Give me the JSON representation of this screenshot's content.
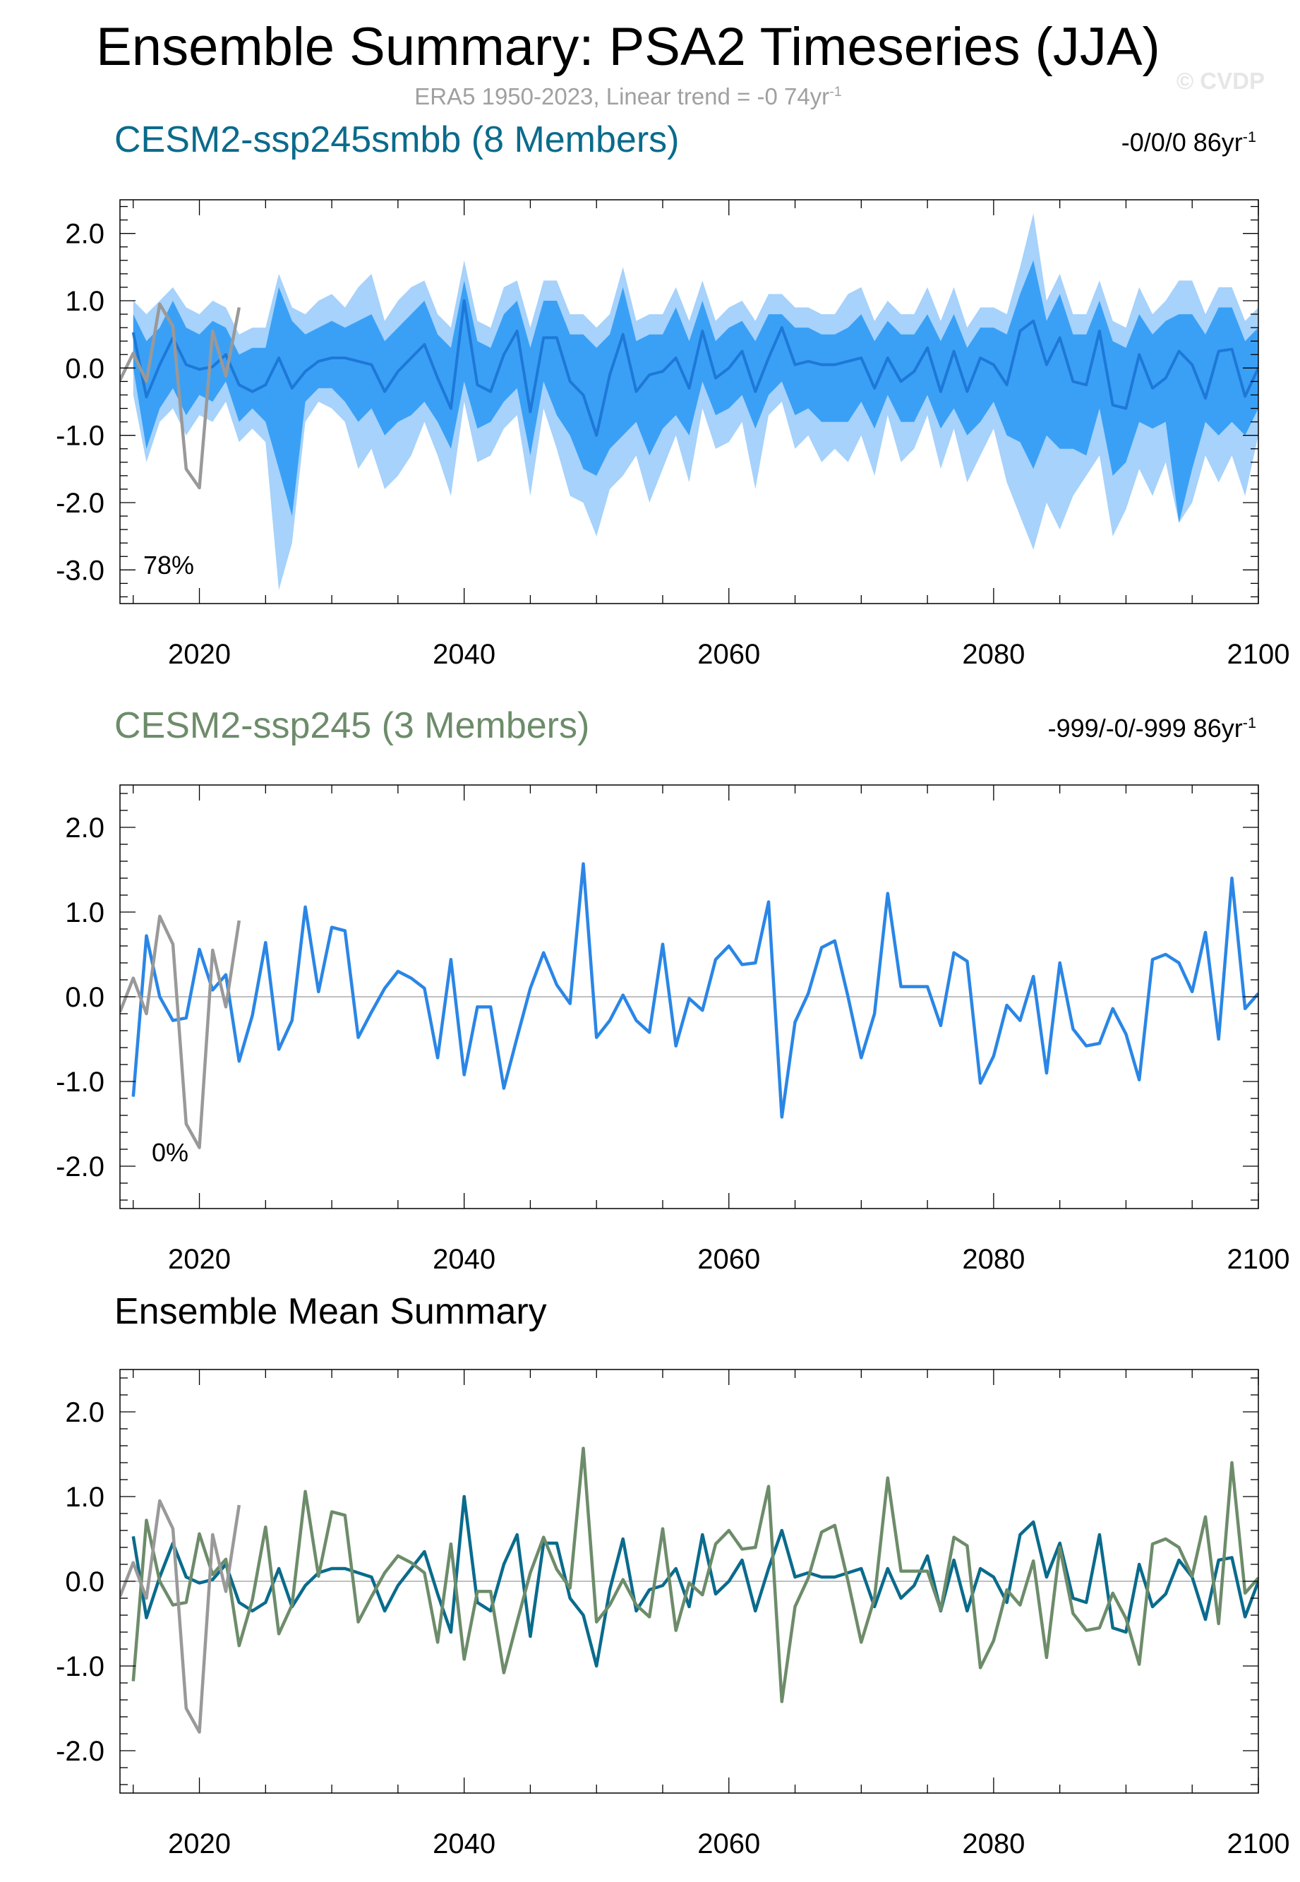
{
  "header": {
    "title": "Ensemble Summary: PSA2 Timeseries (JJA)",
    "subtitle_main": "ERA5 1950-2023, Linear trend = -0 74yr",
    "subtitle_sup": "-1",
    "watermark": "© CVDP"
  },
  "colors": {
    "smbb_title": "#0a6b8c",
    "ssp245_title": "#6d8c6a",
    "obs_line": "#999999",
    "band_outer": "#a6d2fb",
    "band_inner": "#3aa0f6",
    "smbb_mean_line": "#1e78d8",
    "member_line": "#2a86e6",
    "smbb_summary_line": "#0a6b8c",
    "ssp245_summary_line": "#6d8c6a"
  },
  "panels": {
    "p1": {
      "title": "CESM2-ssp245smbb (8 Members)",
      "right_main": "-0/0/0 86yr",
      "right_sup": "-1",
      "percent": "78%"
    },
    "p2": {
      "title": "CESM2-ssp245 (3 Members)",
      "right_main": "-999/-0/-999 86yr",
      "right_sup": "-1",
      "percent": "0%"
    },
    "p3": {
      "title": "Ensemble Mean Summary"
    }
  },
  "chart_data": [
    {
      "type": "area",
      "panel": "CESM2-ssp245smbb (8 Members)",
      "xlim": [
        2014,
        2100
      ],
      "ylim": [
        -3.5,
        2.5
      ],
      "xticks": [
        "2020",
        "2040",
        "2060",
        "2080",
        "2100"
      ],
      "yticks": [
        "2.0",
        "1.0",
        "0.0",
        "-1.0",
        "-2.0",
        "-3.0"
      ],
      "x_start": 2015,
      "series": [
        {
          "name": "ensemble mean",
          "values": [
            0.53,
            -0.43,
            0.05,
            0.45,
            0.05,
            -0.02,
            0.02,
            0.2,
            -0.25,
            -0.35,
            -0.25,
            0.15,
            -0.3,
            -0.05,
            0.1,
            0.15,
            0.15,
            0.1,
            0.05,
            -0.35,
            -0.05,
            0.15,
            0.35,
            -0.15,
            -0.6,
            1.0,
            -0.25,
            -0.35,
            0.2,
            0.55,
            -0.65,
            0.45,
            0.45,
            -0.2,
            -0.4,
            -1.0,
            -0.1,
            0.5,
            -0.35,
            -0.1,
            -0.05,
            0.15,
            -0.3,
            0.55,
            -0.15,
            0.0,
            0.25,
            -0.35,
            0.15,
            0.6,
            0.05,
            0.1,
            0.05,
            0.05,
            0.1,
            0.15,
            -0.3,
            0.15,
            -0.2,
            -0.05,
            0.3,
            -0.35,
            0.25,
            -0.35,
            0.15,
            0.05,
            -0.25,
            0.55,
            0.7,
            0.05,
            0.45,
            -0.2,
            -0.25,
            0.55,
            -0.55,
            -0.6,
            0.2,
            -0.3,
            -0.15,
            0.25,
            0.05,
            -0.45,
            0.25,
            0.28,
            -0.42,
            0.0,
            0.17
          ]
        },
        {
          "name": "min",
          "values": [
            -0.4,
            -1.4,
            -0.8,
            -0.6,
            -1.0,
            -0.7,
            -0.8,
            -0.5,
            -1.1,
            -0.9,
            -1.1,
            -3.3,
            -2.6,
            -0.8,
            -0.5,
            -0.6,
            -0.8,
            -1.5,
            -1.2,
            -1.8,
            -1.6,
            -1.3,
            -0.8,
            -1.3,
            -1.9,
            -0.5,
            -1.4,
            -1.3,
            -0.9,
            -0.7,
            -1.9,
            -0.6,
            -1.2,
            -1.9,
            -2.0,
            -2.5,
            -1.8,
            -1.6,
            -1.3,
            -2.0,
            -1.5,
            -1.0,
            -1.7,
            -0.6,
            -1.2,
            -1.1,
            -0.8,
            -1.8,
            -0.7,
            -0.5,
            -1.2,
            -1.0,
            -1.4,
            -1.2,
            -1.4,
            -1.0,
            -1.6,
            -0.7,
            -1.4,
            -1.2,
            -0.7,
            -1.5,
            -0.9,
            -1.7,
            -1.3,
            -0.9,
            -1.7,
            -2.2,
            -2.7,
            -2.0,
            -2.4,
            -1.9,
            -1.6,
            -1.3,
            -2.5,
            -2.1,
            -1.5,
            -1.9,
            -1.4,
            -2.3,
            -2.0,
            -1.3,
            -1.7,
            -1.3,
            -1.9,
            -1.0,
            -1.5
          ]
        },
        {
          "name": "p10",
          "values": [
            0.0,
            -1.2,
            -0.6,
            -0.3,
            -0.7,
            -0.4,
            -0.5,
            -0.2,
            -0.8,
            -0.6,
            -0.8,
            -1.5,
            -2.2,
            -0.5,
            -0.3,
            -0.3,
            -0.5,
            -0.8,
            -0.6,
            -1.0,
            -0.8,
            -0.7,
            -0.5,
            -0.8,
            -1.2,
            -0.2,
            -0.9,
            -0.8,
            -0.5,
            -0.3,
            -1.3,
            -0.2,
            -0.7,
            -1.0,
            -1.5,
            -1.6,
            -1.2,
            -1.0,
            -0.8,
            -1.3,
            -0.9,
            -0.7,
            -1.0,
            -0.2,
            -0.7,
            -0.6,
            -0.4,
            -0.9,
            -0.4,
            -0.2,
            -0.7,
            -0.6,
            -0.8,
            -0.8,
            -0.8,
            -0.5,
            -0.9,
            -0.4,
            -0.8,
            -0.8,
            -0.4,
            -0.9,
            -0.6,
            -1.0,
            -0.8,
            -0.5,
            -1.0,
            -1.1,
            -1.5,
            -1.0,
            -1.2,
            -1.2,
            -1.3,
            -0.6,
            -1.6,
            -1.4,
            -0.8,
            -0.9,
            -0.8,
            -2.3,
            -1.5,
            -0.8,
            -1.0,
            -0.8,
            -1.0,
            -0.6,
            -0.7
          ]
        },
        {
          "name": "p90",
          "values": [
            0.8,
            0.4,
            0.6,
            1.0,
            0.6,
            0.5,
            0.7,
            0.6,
            0.2,
            0.3,
            0.3,
            1.2,
            0.7,
            0.5,
            0.6,
            0.7,
            0.6,
            0.7,
            0.8,
            0.4,
            0.6,
            0.8,
            1.0,
            0.5,
            0.3,
            1.3,
            0.4,
            0.3,
            0.8,
            1.0,
            0.3,
            1.0,
            1.0,
            0.5,
            0.5,
            0.3,
            0.5,
            1.2,
            0.4,
            0.5,
            0.5,
            0.9,
            0.4,
            1.0,
            0.4,
            0.6,
            0.7,
            0.4,
            0.8,
            0.8,
            0.6,
            0.6,
            0.5,
            0.5,
            0.6,
            0.8,
            0.4,
            0.7,
            0.5,
            0.5,
            0.8,
            0.4,
            0.8,
            0.3,
            0.6,
            0.6,
            0.5,
            1.1,
            1.6,
            0.7,
            1.1,
            0.5,
            0.5,
            1.0,
            0.4,
            0.3,
            0.8,
            0.5,
            0.7,
            0.8,
            0.8,
            0.5,
            0.9,
            0.9,
            0.4,
            0.6,
            0.6
          ]
        },
        {
          "name": "max",
          "values": [
            1.0,
            0.8,
            1.0,
            1.2,
            0.9,
            0.8,
            1.0,
            0.9,
            0.5,
            0.6,
            0.6,
            1.4,
            0.9,
            0.8,
            1.0,
            1.1,
            0.9,
            1.2,
            1.4,
            0.7,
            1.0,
            1.2,
            1.3,
            0.8,
            0.6,
            1.6,
            0.7,
            0.6,
            1.2,
            1.3,
            0.6,
            1.3,
            1.3,
            0.8,
            0.8,
            0.6,
            0.8,
            1.5,
            0.7,
            0.8,
            0.8,
            1.2,
            0.7,
            1.3,
            0.7,
            0.9,
            1.0,
            0.7,
            1.1,
            1.1,
            0.9,
            0.9,
            0.8,
            0.8,
            1.1,
            1.2,
            0.7,
            1.0,
            0.8,
            0.8,
            1.2,
            0.7,
            1.2,
            0.6,
            0.9,
            0.9,
            0.8,
            1.5,
            2.3,
            1.0,
            1.4,
            0.8,
            0.8,
            1.3,
            0.7,
            0.6,
            1.2,
            0.8,
            1.0,
            1.3,
            1.3,
            0.8,
            1.2,
            1.2,
            0.7,
            0.9,
            0.7
          ]
        },
        {
          "name": "ERA5",
          "x_start": 2014,
          "values": [
            -0.18,
            0.22,
            -0.2,
            0.95,
            0.62,
            -1.5,
            -1.78,
            0.55,
            -0.12,
            0.9
          ]
        }
      ]
    },
    {
      "type": "line",
      "panel": "CESM2-ssp245 (3 Members)",
      "xlim": [
        2014,
        2100
      ],
      "ylim": [
        -2.5,
        2.5
      ],
      "xticks": [
        "2020",
        "2040",
        "2060",
        "2080",
        "2100"
      ],
      "yticks": [
        "2.0",
        "1.0",
        "0.0",
        "-1.0",
        "-2.0"
      ],
      "x_start": 2015,
      "series": [
        {
          "name": "CESM2-ssp245",
          "values": [
            -1.18,
            0.72,
            0.0,
            -0.28,
            -0.25,
            0.56,
            0.08,
            0.26,
            -0.76,
            -0.22,
            0.64,
            -0.62,
            -0.28,
            1.06,
            0.06,
            0.82,
            0.78,
            -0.48,
            -0.18,
            0.1,
            0.3,
            0.22,
            0.1,
            -0.72,
            0.44,
            -0.92,
            -0.12,
            -0.12,
            -1.08,
            -0.48,
            0.1,
            0.52,
            0.14,
            -0.08,
            1.57,
            -0.48,
            -0.28,
            0.02,
            -0.28,
            -0.42,
            0.62,
            -0.58,
            -0.02,
            -0.16,
            0.44,
            0.6,
            0.38,
            0.4,
            1.12,
            -1.42,
            -0.3,
            0.04,
            0.58,
            0.66,
            0.0,
            -0.72,
            -0.2,
            1.22,
            0.12,
            0.12,
            0.12,
            -0.34,
            0.52,
            0.42,
            -1.02,
            -0.7,
            -0.1,
            -0.28,
            0.24,
            -0.9,
            0.4,
            -0.38,
            -0.58,
            -0.55,
            -0.14,
            -0.44,
            -0.98,
            0.44,
            0.5,
            0.4,
            0.06,
            0.76,
            -0.5,
            1.4,
            -0.14,
            0.04
          ]
        },
        {
          "name": "ERA5",
          "x_start": 2014,
          "values": [
            -0.18,
            0.22,
            -0.2,
            0.95,
            0.62,
            -1.5,
            -1.78,
            0.55,
            -0.12,
            0.9
          ]
        }
      ]
    },
    {
      "type": "line",
      "panel": "Ensemble Mean Summary",
      "xlim": [
        2014,
        2100
      ],
      "ylim": [
        -2.5,
        2.5
      ],
      "xticks": [
        "2020",
        "2040",
        "2060",
        "2080",
        "2100"
      ],
      "yticks": [
        "2.0",
        "1.0",
        "0.0",
        "-1.0",
        "-2.0"
      ],
      "series": [
        {
          "name": "CESM2-ssp245smbb",
          "x_start": 2015,
          "values": [
            0.53,
            -0.43,
            0.05,
            0.45,
            0.05,
            -0.02,
            0.02,
            0.2,
            -0.25,
            -0.35,
            -0.25,
            0.15,
            -0.3,
            -0.05,
            0.1,
            0.15,
            0.15,
            0.1,
            0.05,
            -0.35,
            -0.05,
            0.15,
            0.35,
            -0.15,
            -0.6,
            1.0,
            -0.25,
            -0.35,
            0.2,
            0.55,
            -0.65,
            0.45,
            0.45,
            -0.2,
            -0.4,
            -1.0,
            -0.1,
            0.5,
            -0.35,
            -0.1,
            -0.05,
            0.15,
            -0.3,
            0.55,
            -0.15,
            0.0,
            0.25,
            -0.35,
            0.15,
            0.6,
            0.05,
            0.1,
            0.05,
            0.05,
            0.1,
            0.15,
            -0.3,
            0.15,
            -0.2,
            -0.05,
            0.3,
            -0.35,
            0.25,
            -0.35,
            0.15,
            0.05,
            -0.25,
            0.55,
            0.7,
            0.05,
            0.45,
            -0.2,
            -0.25,
            0.55,
            -0.55,
            -0.6,
            0.2,
            -0.3,
            -0.15,
            0.25,
            0.05,
            -0.45,
            0.25,
            0.28,
            -0.42,
            0.0,
            0.17
          ]
        },
        {
          "name": "CESM2-ssp245",
          "x_start": 2015,
          "values": [
            -1.18,
            0.72,
            0.0,
            -0.28,
            -0.25,
            0.56,
            0.08,
            0.26,
            -0.76,
            -0.22,
            0.64,
            -0.62,
            -0.28,
            1.06,
            0.06,
            0.82,
            0.78,
            -0.48,
            -0.18,
            0.1,
            0.3,
            0.22,
            0.1,
            -0.72,
            0.44,
            -0.92,
            -0.12,
            -0.12,
            -1.08,
            -0.48,
            0.1,
            0.52,
            0.14,
            -0.08,
            1.57,
            -0.48,
            -0.28,
            0.02,
            -0.28,
            -0.42,
            0.62,
            -0.58,
            -0.02,
            -0.16,
            0.44,
            0.6,
            0.38,
            0.4,
            1.12,
            -1.42,
            -0.3,
            0.04,
            0.58,
            0.66,
            0.0,
            -0.72,
            -0.2,
            1.22,
            0.12,
            0.12,
            0.12,
            -0.34,
            0.52,
            0.42,
            -1.02,
            -0.7,
            -0.1,
            -0.28,
            0.24,
            -0.9,
            0.4,
            -0.38,
            -0.58,
            -0.55,
            -0.14,
            -0.44,
            -0.98,
            0.44,
            0.5,
            0.4,
            0.06,
            0.76,
            -0.5,
            1.4,
            -0.14,
            0.04
          ]
        },
        {
          "name": "ERA5",
          "x_start": 2014,
          "values": [
            -0.18,
            0.22,
            -0.2,
            0.95,
            0.62,
            -1.5,
            -1.78,
            0.55,
            -0.12,
            0.9
          ]
        }
      ]
    }
  ]
}
